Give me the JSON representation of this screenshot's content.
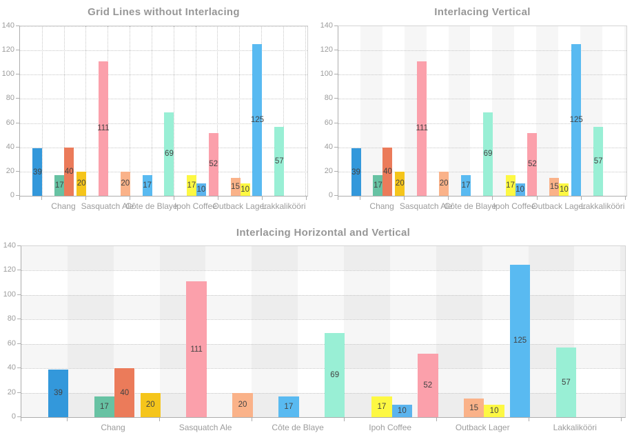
{
  "chart_data": [
    {
      "type": "bar",
      "title": "Grid Lines without Interlacing",
      "interlace_vertical": false,
      "interlace_horizontal": false,
      "vertical_gridlines": true,
      "horizontal_gridlines": true,
      "ylim": [
        0,
        140
      ],
      "y_ticks": [
        0,
        20,
        40,
        60,
        80,
        100,
        120,
        140
      ],
      "x_domain_units": [
        0,
        13.1
      ],
      "categories": [
        "Chang",
        "Sasquatch Ale",
        "Côte de Blaye",
        "Ipoh Coffee",
        "Outback Lager",
        "Lakkalikööri"
      ],
      "category_centers_units": [
        2,
        4,
        6,
        8,
        10,
        12
      ],
      "x_tick_units": [
        0,
        1,
        3,
        5,
        7,
        9,
        11,
        13
      ],
      "bar_width_units": 0.44,
      "bars": [
        {
          "x": 0.8,
          "value": 39,
          "color": "#3398db",
          "category": "Chang"
        },
        {
          "x": 1.8,
          "value": 17,
          "color": "#67c2a3",
          "category": "Chang"
        },
        {
          "x": 2.24,
          "value": 40,
          "color": "#eb7b5a",
          "category": "Chang"
        },
        {
          "x": 2.8,
          "value": 20,
          "color": "#f5c51b",
          "category": "Chang"
        },
        {
          "x": 3.8,
          "value": 111,
          "color": "#fba0ab",
          "category": "Sasquatch Ale"
        },
        {
          "x": 4.8,
          "value": 20,
          "color": "#fab289",
          "category": "Sasquatch Ale"
        },
        {
          "x": 5.8,
          "value": 17,
          "color": "#59baf1",
          "category": "Côte de Blaye"
        },
        {
          "x": 6.8,
          "value": 69,
          "color": "#99efd5",
          "category": "Côte de Blaye"
        },
        {
          "x": 7.82,
          "value": 17,
          "color": "#fdf843",
          "category": "Ipoh Coffee"
        },
        {
          "x": 8.26,
          "value": 10,
          "color": "#5bb4ee",
          "category": "Ipoh Coffee"
        },
        {
          "x": 8.82,
          "value": 52,
          "color": "#fba0ab",
          "category": "Ipoh Coffee"
        },
        {
          "x": 9.82,
          "value": 15,
          "color": "#fab289",
          "category": "Outback Lager"
        },
        {
          "x": 10.26,
          "value": 10,
          "color": "#fdf843",
          "category": "Outback Lager"
        },
        {
          "x": 10.82,
          "value": 125,
          "color": "#59baf1",
          "category": "Outback Lager"
        },
        {
          "x": 11.82,
          "value": 57,
          "color": "#99efd5",
          "category": "Lakkalikööri"
        }
      ]
    },
    {
      "type": "bar",
      "title": "Interlacing Vertical",
      "interlace_vertical": true,
      "interlace_horizontal": false,
      "vertical_gridlines": false,
      "horizontal_gridlines": true,
      "ylim": [
        0,
        140
      ],
      "y_ticks": [
        0,
        20,
        40,
        60,
        80,
        100,
        120,
        140
      ],
      "x_domain_units": [
        0,
        13.1
      ],
      "categories": [
        "Chang",
        "Sasquatch Ale",
        "Côte de Blaye",
        "Ipoh Coffee",
        "Outback Lager",
        "Lakkalikööri"
      ],
      "category_centers_units": [
        2,
        4,
        6,
        8,
        10,
        12
      ],
      "x_tick_units": [
        0,
        1,
        3,
        5,
        7,
        9,
        11,
        13
      ],
      "bar_width_units": 0.44,
      "bars": [
        {
          "x": 0.8,
          "value": 39,
          "color": "#3398db",
          "category": "Chang"
        },
        {
          "x": 1.8,
          "value": 17,
          "color": "#67c2a3",
          "category": "Chang"
        },
        {
          "x": 2.24,
          "value": 40,
          "color": "#eb7b5a",
          "category": "Chang"
        },
        {
          "x": 2.8,
          "value": 20,
          "color": "#f5c51b",
          "category": "Chang"
        },
        {
          "x": 3.8,
          "value": 111,
          "color": "#fba0ab",
          "category": "Sasquatch Ale"
        },
        {
          "x": 4.8,
          "value": 20,
          "color": "#fab289",
          "category": "Sasquatch Ale"
        },
        {
          "x": 5.8,
          "value": 17,
          "color": "#59baf1",
          "category": "Côte de Blaye"
        },
        {
          "x": 6.8,
          "value": 69,
          "color": "#99efd5",
          "category": "Côte de Blaye"
        },
        {
          "x": 7.82,
          "value": 17,
          "color": "#fdf843",
          "category": "Ipoh Coffee"
        },
        {
          "x": 8.26,
          "value": 10,
          "color": "#5bb4ee",
          "category": "Ipoh Coffee"
        },
        {
          "x": 8.82,
          "value": 52,
          "color": "#fba0ab",
          "category": "Ipoh Coffee"
        },
        {
          "x": 9.82,
          "value": 15,
          "color": "#fab289",
          "category": "Outback Lager"
        },
        {
          "x": 10.26,
          "value": 10,
          "color": "#fdf843",
          "category": "Outback Lager"
        },
        {
          "x": 10.82,
          "value": 125,
          "color": "#59baf1",
          "category": "Outback Lager"
        },
        {
          "x": 11.82,
          "value": 57,
          "color": "#99efd5",
          "category": "Lakkalikööri"
        }
      ]
    },
    {
      "type": "bar",
      "title": "Interlacing Horizontal and Vertical",
      "interlace_vertical": true,
      "interlace_horizontal": true,
      "vertical_gridlines": false,
      "horizontal_gridlines": true,
      "ylim": [
        0,
        140
      ],
      "y_ticks": [
        0,
        20,
        40,
        60,
        80,
        100,
        120,
        140
      ],
      "x_domain_units": [
        0,
        13.1
      ],
      "categories": [
        "Chang",
        "Sasquatch Ale",
        "Côte de Blaye",
        "Ipoh Coffee",
        "Outback Lager",
        "Lakkalikööri"
      ],
      "category_centers_units": [
        2,
        4,
        6,
        8,
        10,
        12
      ],
      "x_tick_units": [
        0,
        1,
        3,
        5,
        7,
        9,
        11,
        13
      ],
      "bar_width_units": 0.44,
      "bars": [
        {
          "x": 0.8,
          "value": 39,
          "color": "#3398db",
          "category": "Chang"
        },
        {
          "x": 1.8,
          "value": 17,
          "color": "#67c2a3",
          "category": "Chang"
        },
        {
          "x": 2.24,
          "value": 40,
          "color": "#eb7b5a",
          "category": "Chang"
        },
        {
          "x": 2.8,
          "value": 20,
          "color": "#f5c51b",
          "category": "Chang"
        },
        {
          "x": 3.8,
          "value": 111,
          "color": "#fba0ab",
          "category": "Sasquatch Ale"
        },
        {
          "x": 4.8,
          "value": 20,
          "color": "#fab289",
          "category": "Sasquatch Ale"
        },
        {
          "x": 5.8,
          "value": 17,
          "color": "#59baf1",
          "category": "Côte de Blaye"
        },
        {
          "x": 6.8,
          "value": 69,
          "color": "#99efd5",
          "category": "Côte de Blaye"
        },
        {
          "x": 7.82,
          "value": 17,
          "color": "#fdf843",
          "category": "Ipoh Coffee"
        },
        {
          "x": 8.26,
          "value": 10,
          "color": "#5bb4ee",
          "category": "Ipoh Coffee"
        },
        {
          "x": 8.82,
          "value": 52,
          "color": "#fba0ab",
          "category": "Ipoh Coffee"
        },
        {
          "x": 9.82,
          "value": 15,
          "color": "#fab289",
          "category": "Outback Lager"
        },
        {
          "x": 10.26,
          "value": 10,
          "color": "#fdf843",
          "category": "Outback Lager"
        },
        {
          "x": 10.82,
          "value": 125,
          "color": "#59baf1",
          "category": "Outback Lager"
        },
        {
          "x": 11.82,
          "value": 57,
          "color": "#99efd5",
          "category": "Lakkalikööri"
        }
      ]
    }
  ],
  "styles": {
    "title_color": "#979797",
    "axis_line_color": "#acacac",
    "plot_border_color": "#d4d4d4",
    "gridline_color": "#c6c6c6",
    "axis_label_color": "#9c9c9c",
    "bar_label_color": "#424242",
    "interlace_band_rgba": "rgba(0,0,0,0.036)"
  }
}
